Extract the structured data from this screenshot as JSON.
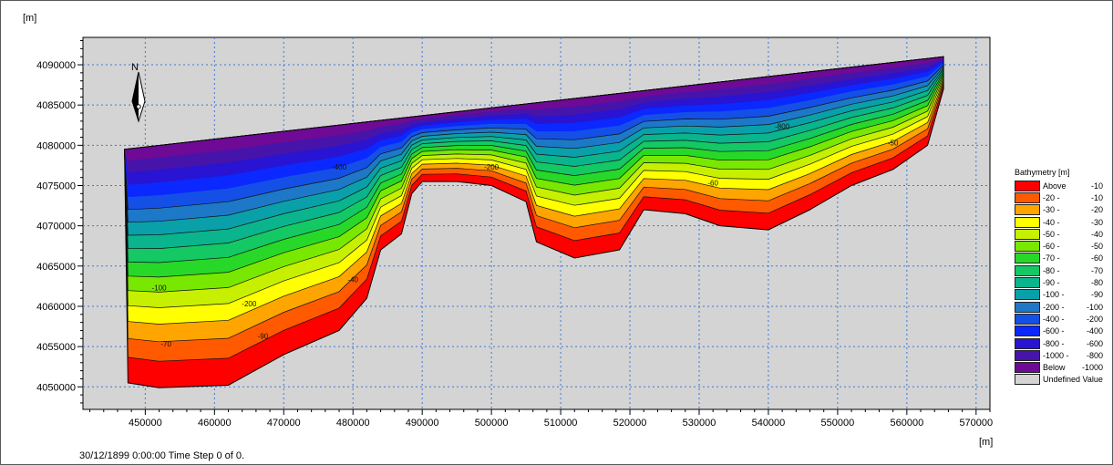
{
  "map": {
    "axis_unit_y": "[m]",
    "axis_unit_x": "[m]",
    "x_ticks": [
      450000,
      460000,
      470000,
      480000,
      490000,
      500000,
      510000,
      520000,
      530000,
      540000,
      550000,
      560000,
      570000
    ],
    "y_ticks": [
      4050000,
      4055000,
      4060000,
      4065000,
      4070000,
      4075000,
      4080000,
      4085000,
      4090000
    ],
    "x_range": [
      441000,
      572000
    ],
    "y_range": [
      4047200,
      4093400
    ],
    "grid": true,
    "background_color": "#d4d4d4",
    "north_arrow": {
      "label": "N",
      "icon": "north-arrow-icon"
    },
    "domain_outline": [
      [
        447000,
        4079500
      ],
      [
        565300,
        4091000
      ],
      [
        565300,
        4087000
      ],
      [
        563000,
        4080000
      ],
      [
        558000,
        4077000
      ],
      [
        552000,
        4075000
      ],
      [
        546000,
        4072000
      ],
      [
        540000,
        4069500
      ],
      [
        533000,
        4070000
      ],
      [
        528000,
        4071500
      ],
      [
        522000,
        4072000
      ],
      [
        518500,
        4067000
      ],
      [
        512000,
        4066000
      ],
      [
        506500,
        4068000
      ],
      [
        505000,
        4073000
      ],
      [
        500000,
        4075000
      ],
      [
        495000,
        4075500
      ],
      [
        490000,
        4075500
      ],
      [
        488500,
        4074000
      ],
      [
        487000,
        4069000
      ],
      [
        484000,
        4067000
      ],
      [
        482000,
        4061000
      ],
      [
        478000,
        4057000
      ],
      [
        470000,
        4054000
      ],
      [
        462000,
        4050200
      ],
      [
        452000,
        4049900
      ],
      [
        447500,
        4050500
      ]
    ],
    "contour_labels": [
      {
        "text": "-400",
        "x": 478000,
        "y": 4077000
      },
      {
        "text": "-200",
        "x": 465000,
        "y": 4060000
      },
      {
        "text": "-100",
        "x": 452000,
        "y": 4062000
      },
      {
        "text": "-70",
        "x": 453000,
        "y": 4055000
      },
      {
        "text": "-40",
        "x": 480000,
        "y": 4063000
      },
      {
        "text": "-90",
        "x": 467000,
        "y": 4056000
      },
      {
        "text": "-200",
        "x": 500000,
        "y": 4077000
      },
      {
        "text": "-50",
        "x": 558000,
        "y": 4080000
      },
      {
        "text": "-800",
        "x": 542000,
        "y": 4082000
      },
      {
        "text": "-60",
        "x": 532000,
        "y": 4075000
      }
    ]
  },
  "legend": {
    "title": "Bathymetry [m]",
    "items": [
      {
        "lo": "Above",
        "hi": "-10",
        "color": "#ff0000"
      },
      {
        "lo": "-20 -",
        "hi": "-10",
        "color": "#ff5a00"
      },
      {
        "lo": "-30 -",
        "hi": "-20",
        "color": "#ffa500"
      },
      {
        "lo": "-40 -",
        "hi": "-30",
        "color": "#ffff00"
      },
      {
        "lo": "-50 -",
        "hi": "-40",
        "color": "#c6f000"
      },
      {
        "lo": "-60 -",
        "hi": "-50",
        "color": "#78e800"
      },
      {
        "lo": "-70 -",
        "hi": "-60",
        "color": "#28d828"
      },
      {
        "lo": "-80 -",
        "hi": "-70",
        "color": "#14c864"
      },
      {
        "lo": "-90 -",
        "hi": "-80",
        "color": "#0ab48c"
      },
      {
        "lo": "-100 -",
        "hi": "-90",
        "color": "#0aa0aa"
      },
      {
        "lo": "-200 -",
        "hi": "-100",
        "color": "#1e78c8"
      },
      {
        "lo": "-400 -",
        "hi": "-200",
        "color": "#1450e6"
      },
      {
        "lo": "-600 -",
        "hi": "-400",
        "color": "#0a28ff"
      },
      {
        "lo": "-800 -",
        "hi": "-600",
        "color": "#2814d2"
      },
      {
        "lo": "-1000 -",
        "hi": "-800",
        "color": "#4614aa"
      },
      {
        "lo": "Below",
        "hi": "-1000",
        "color": "#6e0a96"
      },
      {
        "lo": "Undefined Value",
        "hi": "",
        "color": "#d4d4d4"
      }
    ]
  },
  "status": "30/12/1899 0:00:00  Time Step 0 of 0."
}
